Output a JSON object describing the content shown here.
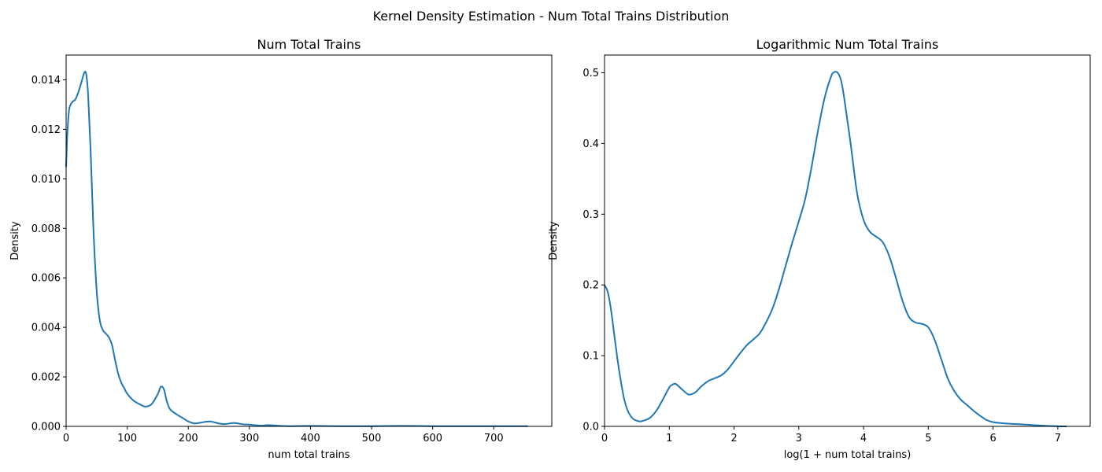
{
  "figure": {
    "suptitle": "Kernel Density Estimation - Num Total Trains Distribution",
    "line_color": "#1f77b4"
  },
  "chart_data": [
    {
      "type": "line",
      "title": "Num Total Trains",
      "xlabel": "num total trains",
      "ylabel": "Density",
      "xlim": [
        0,
        795
      ],
      "ylim": [
        0,
        0.015
      ],
      "xticks": [
        0,
        100,
        200,
        300,
        400,
        500,
        600,
        700
      ],
      "yticks": [
        0.0,
        0.002,
        0.004,
        0.006,
        0.008,
        0.01,
        0.012,
        0.014
      ],
      "ytick_labels": [
        "0.000",
        "0.002",
        "0.004",
        "0.006",
        "0.008",
        "0.010",
        "0.012",
        "0.014"
      ],
      "grid": false,
      "series": [
        {
          "x": [
            0,
            2,
            5,
            10,
            15,
            20,
            25,
            30,
            33,
            36,
            40,
            45,
            50,
            55,
            60,
            65,
            70,
            75,
            80,
            85,
            90,
            95,
            100,
            110,
            120,
            130,
            140,
            150,
            155,
            160,
            165,
            170,
            180,
            190,
            200,
            210,
            220,
            235,
            250,
            260,
            275,
            290,
            300,
            320,
            330,
            350,
            370,
            400,
            450,
            500,
            550,
            600,
            650,
            700,
            755
          ],
          "y": [
            0.0105,
            0.0118,
            0.0128,
            0.0131,
            0.0132,
            0.0135,
            0.0139,
            0.0143,
            0.0142,
            0.0134,
            0.0112,
            0.0078,
            0.0055,
            0.0043,
            0.0039,
            0.00375,
            0.0036,
            0.0033,
            0.0027,
            0.00215,
            0.00178,
            0.00155,
            0.00132,
            0.00105,
            0.0009,
            0.0008,
            0.0009,
            0.0013,
            0.0016,
            0.0015,
            0.001,
            0.0007,
            0.0005,
            0.00035,
            0.0002,
            0.00012,
            0.00015,
            0.0002,
            0.00012,
            9e-05,
            0.00014,
            8e-05,
            7e-05,
            3e-05,
            5e-05,
            2e-05,
            1e-05,
            2e-05,
            1e-05,
            1e-05,
            2e-05,
            1e-05,
            1e-05,
            1e-05,
            1e-05
          ]
        }
      ]
    },
    {
      "type": "line",
      "title": "Logarithmic Num Total Trains",
      "xlabel": "log(1 + num total trains)",
      "ylabel": "Density",
      "xlim": [
        0,
        7.5
      ],
      "ylim": [
        0,
        0.525
      ],
      "xticks": [
        0,
        1,
        2,
        3,
        4,
        5,
        6,
        7
      ],
      "yticks": [
        0.0,
        0.1,
        0.2,
        0.3,
        0.4,
        0.5
      ],
      "ytick_labels": [
        "0.0",
        "0.1",
        "0.2",
        "0.3",
        "0.4",
        "0.5"
      ],
      "grid": false,
      "series": [
        {
          "x": [
            0,
            0.05,
            0.1,
            0.15,
            0.2,
            0.25,
            0.3,
            0.35,
            0.4,
            0.45,
            0.5,
            0.55,
            0.6,
            0.7,
            0.8,
            0.9,
            1.0,
            1.05,
            1.1,
            1.2,
            1.3,
            1.4,
            1.5,
            1.6,
            1.7,
            1.8,
            1.9,
            2.0,
            2.1,
            2.2,
            2.3,
            2.4,
            2.5,
            2.6,
            2.7,
            2.8,
            2.9,
            3.0,
            3.1,
            3.2,
            3.3,
            3.4,
            3.5,
            3.55,
            3.6,
            3.65,
            3.7,
            3.8,
            3.9,
            4.0,
            4.1,
            4.2,
            4.3,
            4.4,
            4.5,
            4.6,
            4.7,
            4.8,
            4.9,
            5.0,
            5.1,
            5.2,
            5.3,
            5.4,
            5.5,
            5.6,
            5.7,
            5.8,
            5.9,
            6.0,
            6.2,
            6.4,
            6.6,
            6.8,
            7.0,
            7.13
          ],
          "y": [
            0.2,
            0.19,
            0.165,
            0.13,
            0.095,
            0.065,
            0.04,
            0.024,
            0.015,
            0.01,
            0.008,
            0.007,
            0.008,
            0.012,
            0.022,
            0.038,
            0.055,
            0.059,
            0.06,
            0.052,
            0.045,
            0.048,
            0.057,
            0.064,
            0.068,
            0.072,
            0.08,
            0.092,
            0.104,
            0.115,
            0.123,
            0.132,
            0.148,
            0.168,
            0.196,
            0.228,
            0.26,
            0.29,
            0.322,
            0.368,
            0.42,
            0.465,
            0.495,
            0.501,
            0.5,
            0.49,
            0.465,
            0.4,
            0.33,
            0.292,
            0.275,
            0.268,
            0.26,
            0.24,
            0.21,
            0.178,
            0.155,
            0.147,
            0.145,
            0.14,
            0.122,
            0.095,
            0.068,
            0.05,
            0.038,
            0.03,
            0.022,
            0.015,
            0.009,
            0.006,
            0.004,
            0.003,
            0.002,
            0.0008,
            0.0002,
            0.0
          ]
        }
      ]
    }
  ]
}
